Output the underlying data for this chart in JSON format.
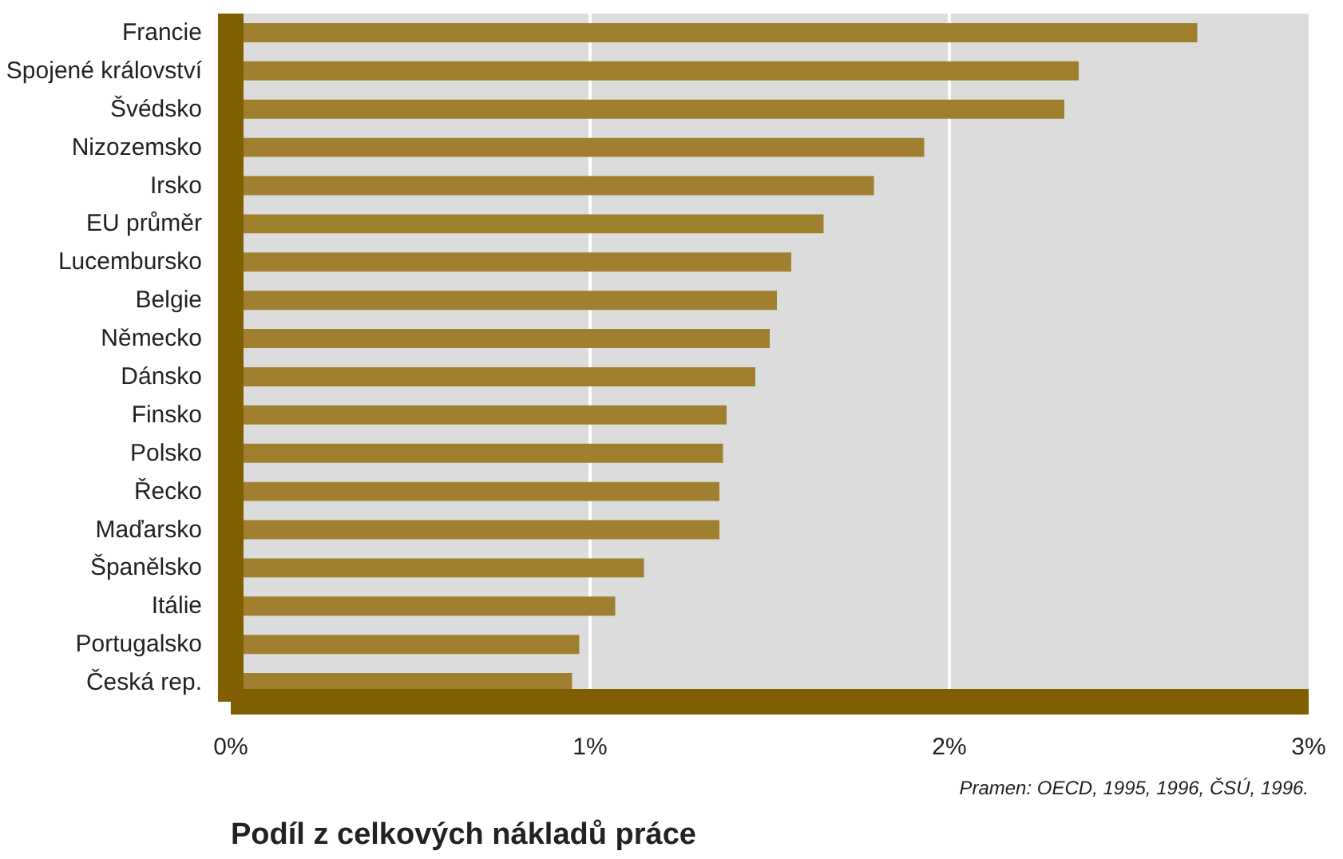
{
  "chart_data": {
    "type": "bar",
    "orientation": "horizontal",
    "xlabel": "Podíl z celkových nákladů práce",
    "categories": [
      "Francie",
      "Spojené království",
      "Švédsko",
      "Nizozemsko",
      "Irsko",
      "EU průměr",
      "Lucembursko",
      "Belgie",
      "Německo",
      "Dánsko",
      "Finsko",
      "Polsko",
      "Řecko",
      "Maďarsko",
      "Španělsko",
      "Itálie",
      "Portugalsko",
      "Česká rep."
    ],
    "values": [
      2.69,
      2.36,
      2.32,
      1.93,
      1.79,
      1.65,
      1.56,
      1.52,
      1.5,
      1.46,
      1.38,
      1.37,
      1.36,
      1.36,
      1.15,
      1.07,
      0.97,
      0.95
    ],
    "color": "#a0802f",
    "xlim": [
      0,
      3
    ],
    "xticks": [
      {
        "value": 0,
        "label": "0%"
      },
      {
        "value": 1,
        "label": "1%"
      },
      {
        "value": 2,
        "label": "2%"
      },
      {
        "value": 3,
        "label": "3%"
      }
    ],
    "grid": "x",
    "annotations": [
      "Pramen: OECD, 1995, 1996, ČSÚ, 1996."
    ]
  }
}
